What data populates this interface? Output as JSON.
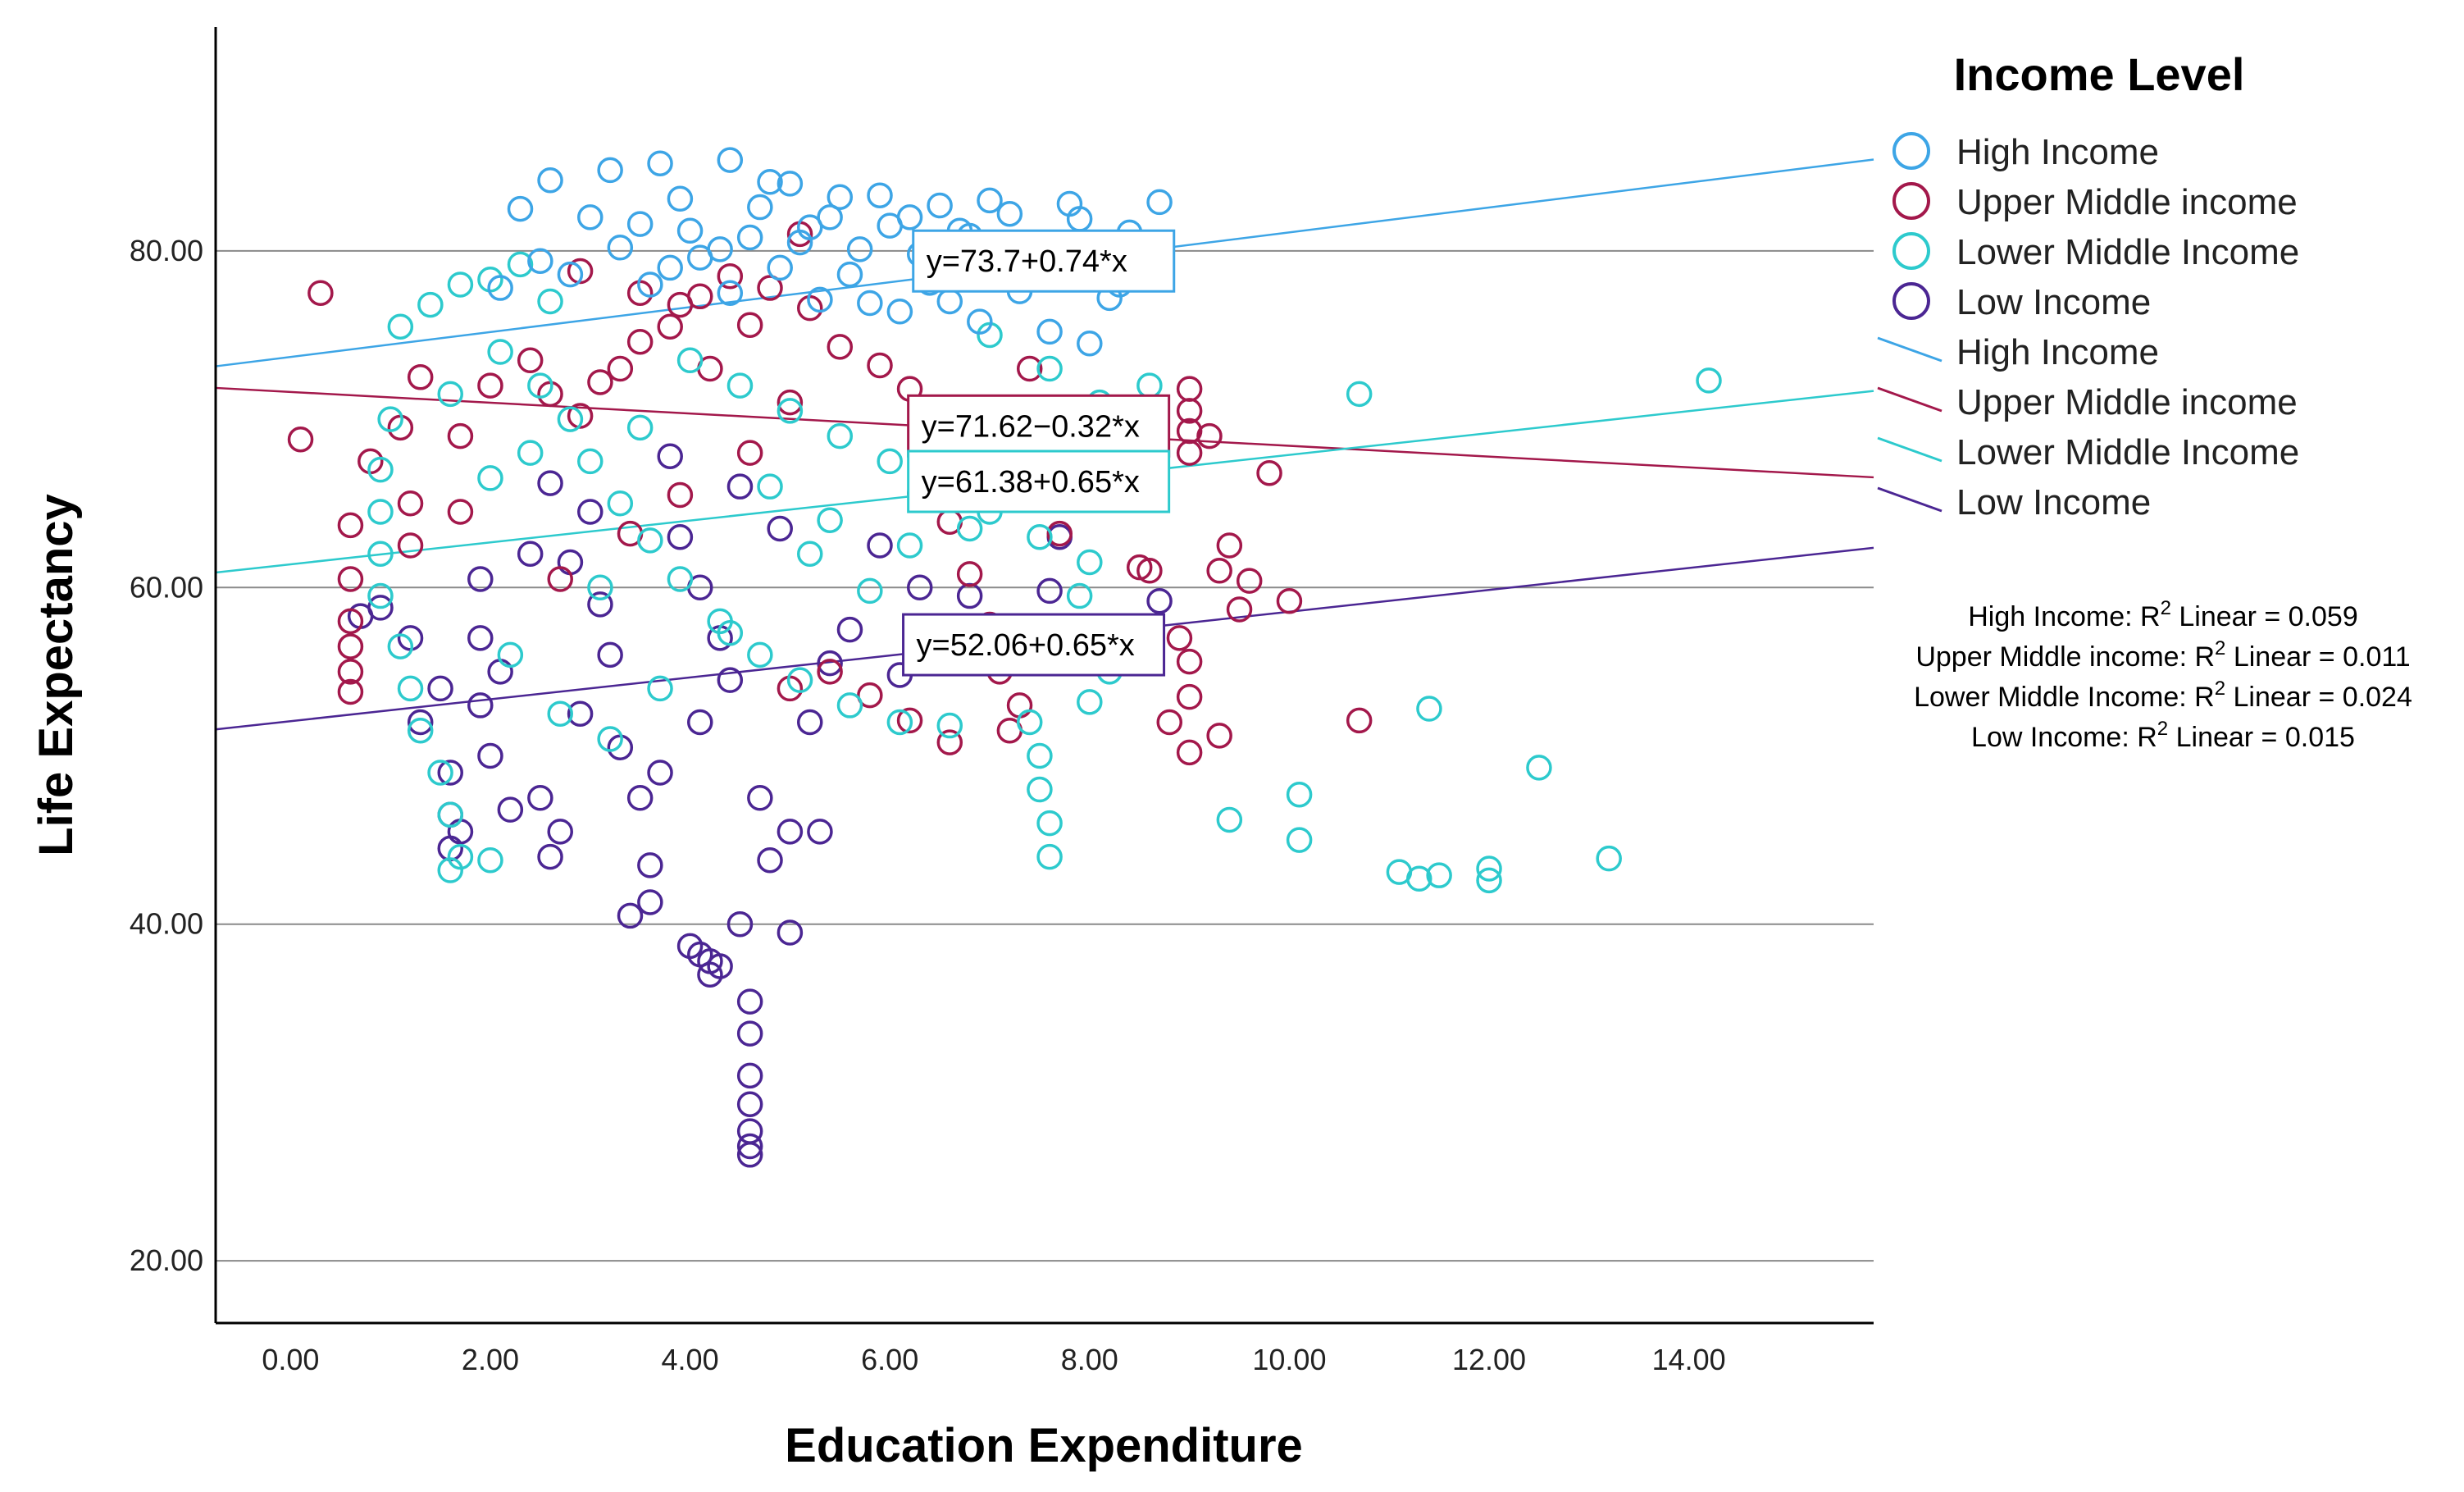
{
  "chart_data": {
    "type": "scatter",
    "xlabel": "Education Expenditure",
    "ylabel": "Life Expectancy",
    "xlim": [
      -0.75,
      15.85
    ],
    "ylim": [
      16.3,
      93.3
    ],
    "x_ticks": [
      0,
      2,
      4,
      6,
      8,
      10,
      12,
      14
    ],
    "x_tick_labels": [
      "0.00",
      "2.00",
      "4.00",
      "6.00",
      "8.00",
      "10.00",
      "12.00",
      "14.00"
    ],
    "y_ticks": [
      20,
      40,
      60,
      80
    ],
    "y_tick_labels": [
      "20.00",
      "40.00",
      "60.00",
      "80.00"
    ],
    "gridlines": "horizontal",
    "legend_title": "Income Level",
    "legend_position": "right",
    "series": [
      {
        "name": "High Income",
        "color": "#3DA5E6",
        "fit": {
          "intercept": 73.7,
          "slope": 0.74
        },
        "equation": "y=73.7+0.74*x",
        "r2_label": "High Income: R",
        "r2_suffix": " Linear = 0.059",
        "r2": 0.059,
        "points": [
          [
            2.6,
            84.2
          ],
          [
            3.2,
            84.8
          ],
          [
            3.7,
            85.2
          ],
          [
            4.4,
            85.4
          ],
          [
            4.8,
            84.1
          ],
          [
            5.5,
            83.2
          ],
          [
            6.2,
            82.0
          ],
          [
            7.0,
            83.0
          ],
          [
            7.8,
            82.8
          ],
          [
            8.7,
            82.9
          ],
          [
            2.3,
            82.5
          ],
          [
            3.0,
            82.0
          ],
          [
            3.5,
            81.6
          ],
          [
            4.0,
            81.2
          ],
          [
            4.6,
            80.8
          ],
          [
            5.1,
            80.5
          ],
          [
            5.7,
            80.1
          ],
          [
            6.3,
            79.8
          ],
          [
            7.0,
            79.5
          ],
          [
            7.7,
            78.9
          ],
          [
            8.3,
            78.0
          ],
          [
            3.3,
            80.2
          ],
          [
            4.1,
            79.6
          ],
          [
            4.9,
            79.0
          ],
          [
            5.6,
            78.6
          ],
          [
            6.4,
            78.1
          ],
          [
            7.3,
            77.6
          ],
          [
            8.2,
            77.2
          ],
          [
            2.8,
            78.6
          ],
          [
            3.6,
            78.0
          ],
          [
            4.4,
            77.5
          ],
          [
            5.3,
            77.1
          ],
          [
            6.1,
            76.4
          ],
          [
            6.9,
            75.8
          ],
          [
            7.6,
            75.2
          ],
          [
            8.0,
            74.5
          ],
          [
            5.8,
            76.9
          ],
          [
            6.6,
            77.0
          ],
          [
            2.1,
            77.8
          ],
          [
            2.5,
            79.4
          ],
          [
            3.9,
            83.1
          ],
          [
            4.7,
            82.6
          ],
          [
            5.4,
            82.0
          ],
          [
            6.0,
            81.5
          ],
          [
            6.8,
            80.9
          ],
          [
            7.5,
            80.4
          ],
          [
            8.4,
            81.1
          ],
          [
            5.0,
            84.0
          ],
          [
            5.9,
            83.3
          ],
          [
            6.5,
            82.7
          ],
          [
            7.2,
            82.2
          ],
          [
            8.1,
            79.6
          ],
          [
            4.3,
            80.1
          ],
          [
            3.8,
            79.0
          ],
          [
            5.2,
            81.4
          ],
          [
            6.7,
            81.2
          ],
          [
            7.9,
            81.9
          ]
        ]
      },
      {
        "name": "Upper Middle income",
        "color": "#A3184B",
        "fit": {
          "intercept": 71.62,
          "slope": -0.32
        },
        "equation": "y=71.62−0.32*x",
        "r2_label": "Upper Middle income: R",
        "r2_suffix": " Linear = 0.011",
        "r2": 0.011,
        "points": [
          [
            0.3,
            77.5
          ],
          [
            0.1,
            68.8
          ],
          [
            0.6,
            63.7
          ],
          [
            0.6,
            60.5
          ],
          [
            0.6,
            58.0
          ],
          [
            0.6,
            56.5
          ],
          [
            0.6,
            55.0
          ],
          [
            0.6,
            53.8
          ],
          [
            0.8,
            67.5
          ],
          [
            1.1,
            69.5
          ],
          [
            1.3,
            72.5
          ],
          [
            1.2,
            65.0
          ],
          [
            1.2,
            62.5
          ],
          [
            1.7,
            69.0
          ],
          [
            1.7,
            64.5
          ],
          [
            2.0,
            72.0
          ],
          [
            2.4,
            73.5
          ],
          [
            2.6,
            71.5
          ],
          [
            2.9,
            70.2
          ],
          [
            3.1,
            72.2
          ],
          [
            3.3,
            73.0
          ],
          [
            3.5,
            74.6
          ],
          [
            3.8,
            75.5
          ],
          [
            4.1,
            77.3
          ],
          [
            4.4,
            78.5
          ],
          [
            4.8,
            77.8
          ],
          [
            5.2,
            76.6
          ],
          [
            3.5,
            77.5
          ],
          [
            3.9,
            76.8
          ],
          [
            4.6,
            75.6
          ],
          [
            5.5,
            74.3
          ],
          [
            5.9,
            73.2
          ],
          [
            6.2,
            71.8
          ],
          [
            6.5,
            69.9
          ],
          [
            6.9,
            68.8
          ],
          [
            7.4,
            73.0
          ],
          [
            7.6,
            70.5
          ],
          [
            8.1,
            67.8
          ],
          [
            8.4,
            65.5
          ],
          [
            8.6,
            61.0
          ],
          [
            8.9,
            57.0
          ],
          [
            9.0,
            55.6
          ],
          [
            9.0,
            53.5
          ],
          [
            8.8,
            52.0
          ],
          [
            9.0,
            50.2
          ],
          [
            9.0,
            71.8
          ],
          [
            9.0,
            70.5
          ],
          [
            9.0,
            69.3
          ],
          [
            9.0,
            68.0
          ],
          [
            9.2,
            69.0
          ],
          [
            9.3,
            61.0
          ],
          [
            9.4,
            62.5
          ],
          [
            9.6,
            60.4
          ],
          [
            9.5,
            58.7
          ],
          [
            9.8,
            66.8
          ],
          [
            10.0,
            59.2
          ],
          [
            10.7,
            52.1
          ],
          [
            9.3,
            51.2
          ],
          [
            6.3,
            65.6
          ],
          [
            6.6,
            63.9
          ],
          [
            6.8,
            60.8
          ],
          [
            7.0,
            57.8
          ],
          [
            7.1,
            55.0
          ],
          [
            7.3,
            53.0
          ],
          [
            7.2,
            51.5
          ],
          [
            6.6,
            50.8
          ],
          [
            6.2,
            52.1
          ],
          [
            5.8,
            53.6
          ],
          [
            5.4,
            55.0
          ],
          [
            5.0,
            54.0
          ],
          [
            5.1,
            81.0
          ],
          [
            2.9,
            78.8
          ],
          [
            4.2,
            73.0
          ],
          [
            5.0,
            71.0
          ],
          [
            4.6,
            68.0
          ],
          [
            3.9,
            65.5
          ],
          [
            3.4,
            63.2
          ],
          [
            2.7,
            60.5
          ],
          [
            8.5,
            61.2
          ],
          [
            7.7,
            63.2
          ]
        ]
      },
      {
        "name": "Lower Middle Income",
        "color": "#2DCACD",
        "fit": {
          "intercept": 61.38,
          "slope": 0.65
        },
        "equation": "y=61.38+0.65*x",
        "r2_label": "Lower Middle Income: R",
        "r2_suffix": " Linear = 0.024",
        "r2": 0.024,
        "points": [
          [
            0.9,
            67.0
          ],
          [
            0.9,
            64.5
          ],
          [
            0.9,
            62.0
          ],
          [
            0.9,
            59.5
          ],
          [
            1.1,
            56.5
          ],
          [
            1.2,
            54.0
          ],
          [
            1.3,
            51.5
          ],
          [
            1.5,
            49.0
          ],
          [
            1.6,
            46.5
          ],
          [
            1.7,
            44.0
          ],
          [
            1.6,
            43.2
          ],
          [
            2.0,
            43.8
          ],
          [
            1.1,
            75.5
          ],
          [
            1.4,
            76.8
          ],
          [
            1.7,
            78.0
          ],
          [
            2.0,
            78.3
          ],
          [
            2.3,
            79.2
          ],
          [
            2.6,
            77.0
          ],
          [
            2.1,
            74.0
          ],
          [
            2.5,
            72.0
          ],
          [
            2.8,
            70.0
          ],
          [
            3.0,
            67.5
          ],
          [
            3.3,
            65.0
          ],
          [
            3.6,
            62.8
          ],
          [
            3.9,
            60.5
          ],
          [
            4.3,
            58.0
          ],
          [
            4.7,
            56.0
          ],
          [
            5.1,
            54.5
          ],
          [
            5.6,
            53.0
          ],
          [
            6.1,
            52.0
          ],
          [
            6.6,
            51.8
          ],
          [
            4.0,
            73.5
          ],
          [
            4.5,
            72.0
          ],
          [
            5.0,
            70.5
          ],
          [
            5.5,
            69.0
          ],
          [
            6.0,
            67.5
          ],
          [
            6.5,
            66.0
          ],
          [
            7.0,
            64.5
          ],
          [
            7.5,
            63.0
          ],
          [
            8.0,
            61.5
          ],
          [
            7.0,
            75.0
          ],
          [
            7.6,
            73.0
          ],
          [
            8.1,
            71.0
          ],
          [
            8.6,
            72.0
          ],
          [
            7.4,
            52.0
          ],
          [
            7.5,
            50.0
          ],
          [
            7.5,
            48.0
          ],
          [
            7.6,
            46.0
          ],
          [
            7.6,
            44.0
          ],
          [
            9.4,
            46.2
          ],
          [
            10.1,
            47.7
          ],
          [
            10.1,
            45.0
          ],
          [
            10.7,
            71.5
          ],
          [
            11.1,
            43.1
          ],
          [
            11.3,
            42.7
          ],
          [
            11.4,
            52.8
          ],
          [
            11.5,
            42.9
          ],
          [
            12.0,
            43.3
          ],
          [
            12.0,
            42.6
          ],
          [
            12.5,
            49.3
          ],
          [
            13.2,
            43.9
          ],
          [
            14.2,
            72.3
          ],
          [
            7.9,
            59.5
          ],
          [
            8.3,
            57.5
          ],
          [
            8.2,
            55.0
          ],
          [
            8.0,
            53.2
          ],
          [
            6.4,
            57.5
          ],
          [
            5.8,
            59.8
          ],
          [
            5.2,
            62.0
          ],
          [
            2.2,
            56.0
          ],
          [
            2.7,
            52.5
          ],
          [
            3.2,
            51.0
          ],
          [
            3.7,
            54.0
          ],
          [
            4.4,
            57.3
          ],
          [
            1.0,
            70.0
          ],
          [
            1.6,
            71.5
          ],
          [
            2.4,
            68.0
          ],
          [
            3.5,
            69.5
          ],
          [
            4.8,
            66.0
          ],
          [
            5.4,
            64.0
          ],
          [
            6.2,
            62.5
          ],
          [
            6.8,
            63.5
          ],
          [
            3.1,
            60.0
          ],
          [
            2.0,
            66.5
          ]
        ]
      },
      {
        "name": "Low Income",
        "color": "#4B2693",
        "fit": {
          "intercept": 52.06,
          "slope": 0.65
        },
        "equation": "y=52.06+0.65*x",
        "r2_label": "Low Income: R",
        "r2_suffix": " Linear = 0.015",
        "r2": 0.015,
        "points": [
          [
            0.7,
            58.3
          ],
          [
            0.9,
            58.8
          ],
          [
            1.2,
            57.0
          ],
          [
            1.3,
            52.0
          ],
          [
            1.6,
            49.0
          ],
          [
            1.6,
            46.5
          ],
          [
            1.6,
            44.5
          ],
          [
            1.7,
            45.5
          ],
          [
            1.9,
            60.5
          ],
          [
            1.9,
            57.0
          ],
          [
            1.9,
            53.0
          ],
          [
            2.0,
            50.0
          ],
          [
            2.2,
            46.8
          ],
          [
            2.5,
            47.5
          ],
          [
            2.6,
            44.0
          ],
          [
            2.7,
            45.5
          ],
          [
            2.4,
            62.0
          ],
          [
            2.8,
            61.5
          ],
          [
            3.1,
            59.0
          ],
          [
            3.2,
            56.0
          ],
          [
            3.3,
            50.5
          ],
          [
            3.5,
            47.5
          ],
          [
            3.6,
            43.5
          ],
          [
            3.4,
            40.5
          ],
          [
            3.6,
            41.3
          ],
          [
            3.9,
            63.0
          ],
          [
            4.1,
            60.0
          ],
          [
            4.3,
            57.0
          ],
          [
            4.4,
            54.5
          ],
          [
            4.1,
            52.0
          ],
          [
            4.0,
            38.7
          ],
          [
            4.1,
            38.2
          ],
          [
            4.2,
            37.8
          ],
          [
            4.3,
            37.5
          ],
          [
            4.2,
            37.0
          ],
          [
            4.5,
            40.0
          ],
          [
            4.6,
            35.4
          ],
          [
            4.6,
            33.5
          ],
          [
            4.6,
            31.0
          ],
          [
            4.6,
            29.3
          ],
          [
            4.6,
            27.7
          ],
          [
            4.6,
            26.8
          ],
          [
            4.6,
            26.3
          ],
          [
            5.0,
            39.5
          ],
          [
            4.8,
            43.8
          ],
          [
            5.0,
            45.5
          ],
          [
            5.3,
            45.5
          ],
          [
            4.7,
            47.5
          ],
          [
            5.2,
            52.0
          ],
          [
            5.4,
            55.5
          ],
          [
            5.9,
            62.5
          ],
          [
            6.3,
            60.0
          ],
          [
            6.8,
            59.5
          ],
          [
            7.7,
            63.0
          ],
          [
            7.6,
            59.8
          ],
          [
            8.0,
            56.0
          ],
          [
            8.7,
            59.2
          ],
          [
            4.9,
            63.5
          ],
          [
            4.5,
            66.0
          ],
          [
            3.8,
            67.8
          ],
          [
            3.0,
            64.5
          ],
          [
            2.6,
            66.2
          ],
          [
            5.6,
            57.5
          ],
          [
            6.1,
            54.8
          ],
          [
            3.7,
            49.0
          ],
          [
            2.9,
            52.5
          ],
          [
            2.1,
            55.0
          ],
          [
            1.5,
            54.0
          ]
        ]
      }
    ]
  },
  "labels": {
    "r2_superscript": "2"
  }
}
